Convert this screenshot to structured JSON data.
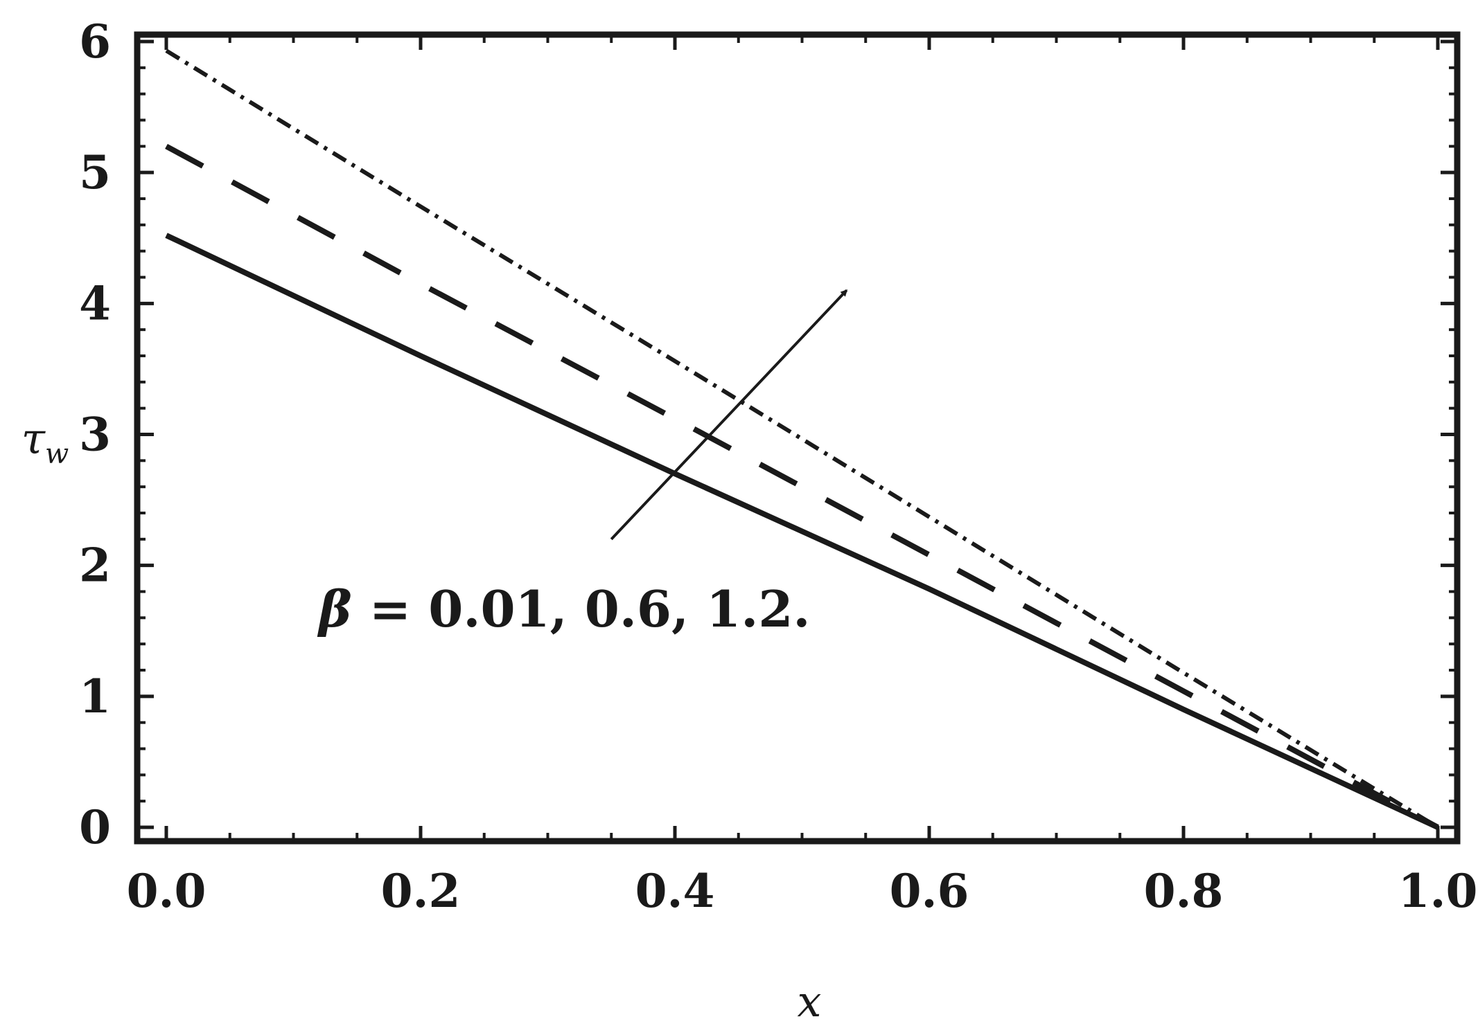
{
  "chart_data": {
    "type": "line",
    "title": "",
    "xlabel": "x",
    "ylabel_base": "τ",
    "ylabel_sub": "w",
    "xlim": [
      0.0,
      1.0
    ],
    "ylim": [
      0,
      6
    ],
    "x_ticks": [
      "0.0",
      "0.2",
      "0.4",
      "0.6",
      "0.8",
      "1.0"
    ],
    "y_ticks": [
      "0",
      "1",
      "2",
      "3",
      "4",
      "5",
      "6"
    ],
    "grid": false,
    "legend": "none",
    "series": [
      {
        "style": "solid",
        "x": [
          0.0,
          0.2,
          0.4,
          0.6,
          0.8,
          1.0
        ],
        "y": [
          4.52,
          3.6,
          2.7,
          1.82,
          0.9,
          0.0
        ]
      },
      {
        "style": "dashed",
        "x": [
          0.0,
          0.2,
          0.4,
          0.6,
          0.8,
          1.0
        ],
        "y": [
          5.2,
          4.15,
          3.12,
          2.08,
          1.04,
          0.0
        ]
      },
      {
        "style": "dashdot",
        "x": [
          0.0,
          0.2,
          0.4,
          0.6,
          0.8,
          1.0
        ],
        "y": [
          5.93,
          4.74,
          3.56,
          2.37,
          1.18,
          0.0
        ]
      }
    ],
    "annotation": {
      "symbol": "β",
      "text": " = 0.01, 0.6, 1.2.",
      "arrow_from": [
        0.35,
        2.2
      ],
      "arrow_to": [
        0.535,
        4.1
      ]
    }
  }
}
